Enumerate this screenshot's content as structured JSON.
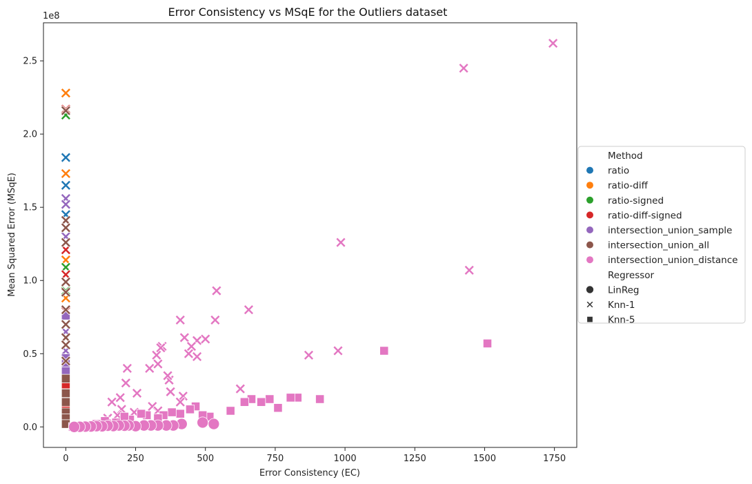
{
  "chart_data": {
    "type": "scatter",
    "title": "Error Consistency vs MSqE for the Outliers dataset",
    "xlabel": "Error Consistency (EC)",
    "ylabel": "Mean Squared Error (MSqE)",
    "y_offset_label": "1e8",
    "xlim": [
      -80,
      1830
    ],
    "ylim": [
      -14000000,
      276000000
    ],
    "xticks": [
      0,
      250,
      500,
      750,
      1000,
      1250,
      1500,
      1750
    ],
    "xtick_labels": [
      "0",
      "250",
      "500",
      "750",
      "1000",
      "1250",
      "1500",
      "1750"
    ],
    "yticks": [
      0,
      50000000,
      100000000,
      150000000,
      200000000,
      250000000
    ],
    "ytick_labels": [
      "0.0",
      "0.5",
      "1.0",
      "1.5",
      "2.0",
      "2.5"
    ],
    "grid": false,
    "legend_placement": "center-right outside",
    "legend": {
      "hue_title": "Method",
      "style_title": "Regressor",
      "methods": [
        {
          "name": "ratio",
          "color": "#1f77b4"
        },
        {
          "name": "ratio-diff",
          "color": "#ff7f0e"
        },
        {
          "name": "ratio-signed",
          "color": "#2ca02c"
        },
        {
          "name": "ratio-diff-signed",
          "color": "#d62728"
        },
        {
          "name": "intersection_union_sample",
          "color": "#9467bd"
        },
        {
          "name": "intersection_union_all",
          "color": "#8c564b"
        },
        {
          "name": "intersection_union_distance",
          "color": "#e377c2"
        }
      ],
      "regressors": [
        {
          "name": "LinReg",
          "marker": "circle"
        },
        {
          "name": "Knn-1",
          "marker": "x"
        },
        {
          "name": "Knn-5",
          "marker": "square"
        }
      ]
    },
    "series": [
      {
        "method": "ratio",
        "regressor": "Knn-1",
        "x": [
          0,
          0,
          0
        ],
        "y": [
          184000000,
          165000000,
          145000000
        ]
      },
      {
        "method": "ratio",
        "regressor": "Knn-5",
        "x": [
          0,
          0,
          0
        ],
        "y": [
          20000000,
          8000000,
          3000000
        ]
      },
      {
        "method": "ratio-diff",
        "regressor": "Knn-1",
        "x": [
          0,
          0,
          0,
          0
        ],
        "y": [
          228000000,
          173000000,
          114000000,
          88000000
        ]
      },
      {
        "method": "ratio-diff",
        "regressor": "Knn-5",
        "x": [
          0,
          0
        ],
        "y": [
          15000000,
          5000000
        ]
      },
      {
        "method": "ratio-signed",
        "regressor": "Knn-1",
        "x": [
          0,
          0,
          0
        ],
        "y": [
          213000000,
          109000000,
          93000000
        ]
      },
      {
        "method": "ratio-diff-signed",
        "regressor": "Knn-1",
        "x": [
          0,
          0,
          0,
          0
        ],
        "y": [
          217000000,
          121000000,
          104000000,
          79000000
        ]
      },
      {
        "method": "ratio-diff-signed",
        "regressor": "Knn-5",
        "x": [
          0,
          0
        ],
        "y": [
          29000000,
          12000000
        ]
      },
      {
        "method": "intersection_union_sample",
        "regressor": "Knn-1",
        "x": [
          0,
          0,
          0,
          0,
          0
        ],
        "y": [
          156000000,
          152000000,
          130000000,
          65000000,
          52000000
        ]
      },
      {
        "method": "intersection_union_sample",
        "regressor": "Knn-5",
        "x": [
          0,
          0,
          0,
          0
        ],
        "y": [
          76000000,
          47000000,
          43000000,
          38000000
        ]
      },
      {
        "method": "intersection_union_all",
        "regressor": "Knn-1",
        "x": [
          0,
          0,
          0,
          0,
          0,
          0,
          0,
          0,
          0,
          0,
          0
        ],
        "y": [
          216000000,
          141000000,
          136000000,
          126000000,
          99000000,
          92000000,
          80000000,
          70000000,
          61000000,
          56000000,
          45000000
        ]
      },
      {
        "method": "intersection_union_all",
        "regressor": "Knn-5",
        "x": [
          0,
          0,
          0,
          0,
          0,
          0
        ],
        "y": [
          33000000,
          23000000,
          17000000,
          10000000,
          6000000,
          2000000
        ]
      },
      {
        "method": "intersection_union_distance",
        "regressor": "Knn-1",
        "x": [
          1745,
          1425,
          985,
          1445,
          540,
          655,
          410,
          535,
          425,
          500,
          470,
          450,
          470,
          440,
          345,
          340,
          325,
          220,
          330,
          300,
          370,
          215,
          365,
          420,
          375,
          625,
          870,
          975,
          255,
          165,
          195,
          200,
          410,
          310,
          330,
          245,
          185,
          150
        ],
        "y": [
          262000000,
          245000000,
          126000000,
          107000000,
          93000000,
          80000000,
          73000000,
          73000000,
          61000000,
          60000000,
          59000000,
          55000000,
          48000000,
          50000000,
          55000000,
          54000000,
          49000000,
          40000000,
          43000000,
          40000000,
          32000000,
          30000000,
          35000000,
          21000000,
          24000000,
          26000000,
          49000000,
          52000000,
          23000000,
          17000000,
          20000000,
          12000000,
          17000000,
          14000000,
          11000000,
          10000000,
          8000000,
          6000000
        ]
      },
      {
        "method": "intersection_union_distance",
        "regressor": "Knn-5",
        "x": [
          1510,
          1140,
          910,
          830,
          805,
          760,
          730,
          700,
          665,
          640,
          590,
          515,
          490,
          465,
          445,
          410,
          380,
          350,
          330,
          290,
          270,
          230,
          210,
          180,
          140,
          110,
          80,
          45,
          25
        ],
        "y": [
          57000000,
          52000000,
          19000000,
          20000000,
          20000000,
          13000000,
          19000000,
          17000000,
          19000000,
          17000000,
          11000000,
          7000000,
          8000000,
          14000000,
          12000000,
          9000000,
          10000000,
          8000000,
          6000000,
          8000000,
          9000000,
          5000000,
          7000000,
          3000000,
          4000000,
          2000000,
          1000000,
          0,
          0
        ]
      },
      {
        "method": "intersection_union_distance",
        "regressor": "LinReg",
        "x": [
          530,
          490,
          415,
          385,
          360,
          330,
          305,
          280,
          250,
          225,
          210,
          190,
          170,
          150,
          130,
          110,
          90,
          70,
          50,
          30
        ],
        "y": [
          2000000,
          3000000,
          2000000,
          1000000,
          1000000,
          1000000,
          1000000,
          1000000,
          500000,
          1000000,
          800000,
          1000000,
          600000,
          800000,
          400000,
          500000,
          300000,
          200000,
          100000,
          0
        ]
      }
    ]
  }
}
